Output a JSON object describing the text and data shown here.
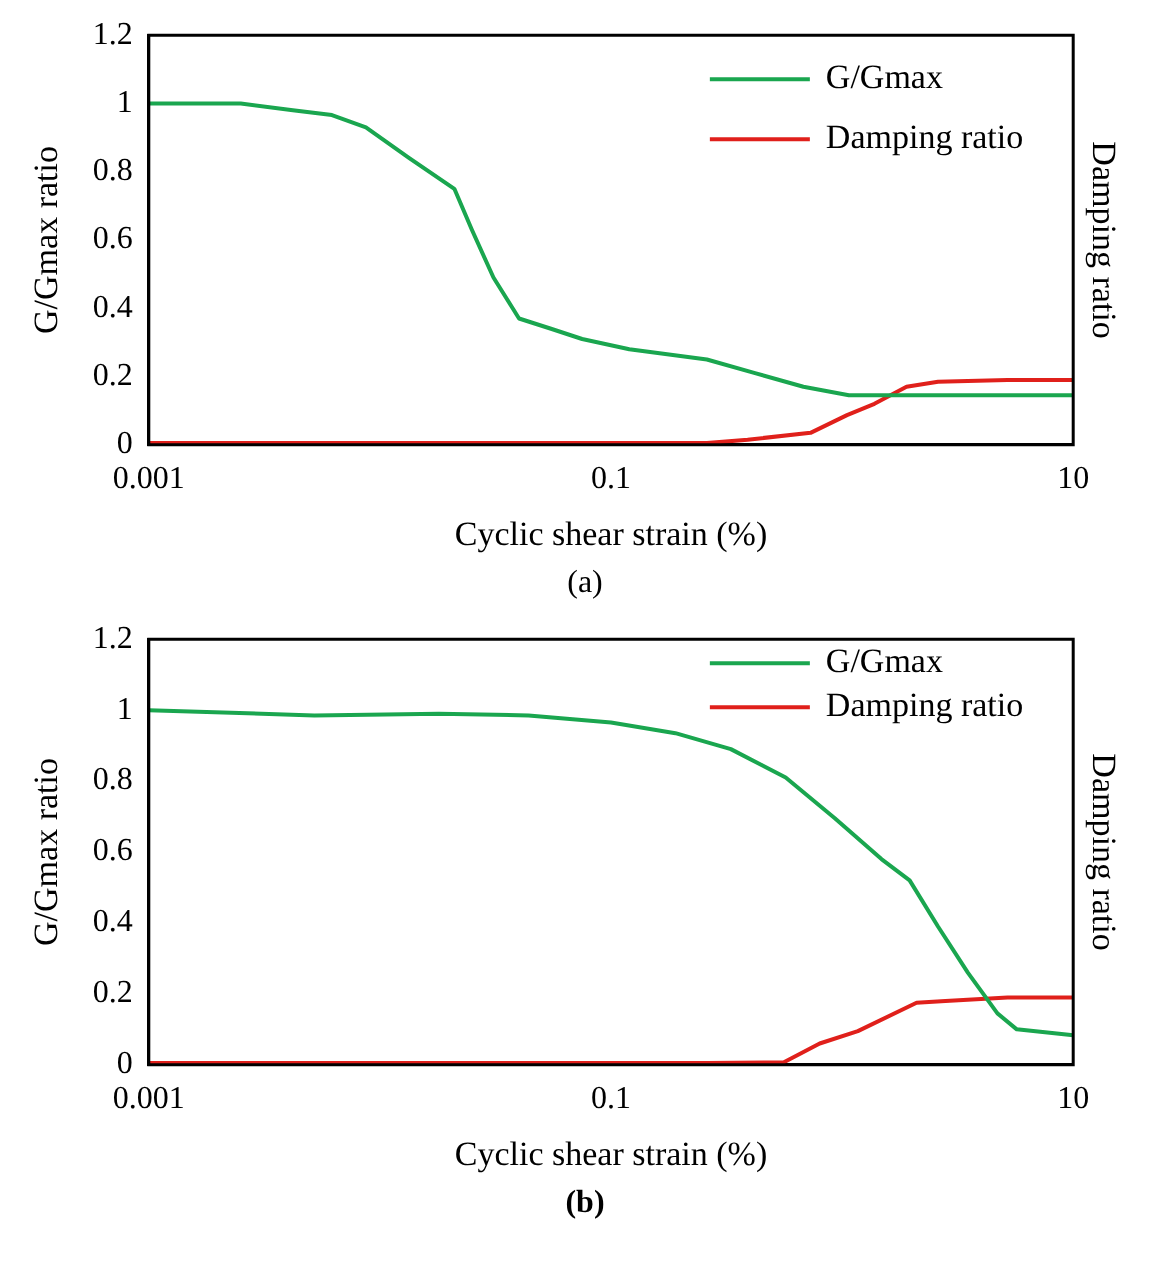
{
  "chart_data": [
    {
      "type": "line",
      "xlabel": "Cyclic shear strain (%)",
      "ylabel": "G/Gmax ratio",
      "y2label": "Damping ratio",
      "annotations": [
        "(a)"
      ],
      "log": "x",
      "xlim": [
        0.001,
        10
      ],
      "xticks": [
        0.001,
        0.1,
        10
      ],
      "ylim": [
        0,
        1.2
      ],
      "yticks": [
        0,
        0.2,
        0.4,
        0.6,
        0.8,
        1,
        1.2
      ],
      "grid": false,
      "legend": "top right",
      "series": [
        {
          "name": "G/Gmax",
          "color": "#1aa64f",
          "x": [
            0.001,
            0.0025,
            0.0042,
            0.0062,
            0.0087,
            0.0134,
            0.021,
            0.025,
            0.031,
            0.04,
            0.055,
            0.075,
            0.12,
            0.26,
            0.42,
            0.68,
            1.07,
            10
          ],
          "values": [
            1.0,
            1.0,
            0.98,
            0.966,
            0.93,
            0.84,
            0.75,
            0.63,
            0.49,
            0.37,
            0.34,
            0.31,
            0.28,
            0.25,
            0.21,
            0.17,
            0.145,
            0.145
          ]
        },
        {
          "name": "Damping ratio",
          "color": "#e0201b",
          "x": [
            0.001,
            0.26,
            0.39,
            0.73,
            1.05,
            1.38,
            1.9,
            2.6,
            5.2,
            10
          ],
          "values": [
            0.005,
            0.005,
            0.015,
            0.035,
            0.087,
            0.12,
            0.17,
            0.185,
            0.19,
            0.19
          ]
        }
      ]
    },
    {
      "type": "line",
      "xlabel": "Cyclic shear strain (%)",
      "ylabel": "G/Gmax ratio",
      "y2label": "Damping ratio",
      "annotations": [
        "(b)"
      ],
      "log": "x",
      "xlim": [
        0.001,
        10
      ],
      "xticks": [
        0.001,
        0.1,
        10
      ],
      "ylim": [
        0,
        1.2
      ],
      "yticks": [
        0,
        0.2,
        0.4,
        0.6,
        0.8,
        1,
        1.2
      ],
      "grid": false,
      "legend": "top right",
      "series": [
        {
          "name": "G/Gmax",
          "color": "#1aa64f",
          "x": [
            0.001,
            0.0052,
            0.018,
            0.044,
            0.1,
            0.19,
            0.33,
            0.57,
            0.93,
            1.48,
            1.96,
            2.6,
            3.5,
            4.7,
            5.7,
            10
          ],
          "values": [
            1.0,
            0.985,
            0.99,
            0.985,
            0.965,
            0.935,
            0.89,
            0.81,
            0.695,
            0.58,
            0.52,
            0.39,
            0.26,
            0.145,
            0.1,
            0.083
          ]
        },
        {
          "name": "Damping ratio",
          "color": "#e0201b",
          "x": [
            0.001,
            0.26,
            0.56,
            0.8,
            1.17,
            2.1,
            2.8,
            5.2,
            10
          ],
          "values": [
            0.005,
            0.005,
            0.007,
            0.06,
            0.095,
            0.175,
            0.18,
            0.19,
            0.19
          ]
        }
      ]
    }
  ]
}
